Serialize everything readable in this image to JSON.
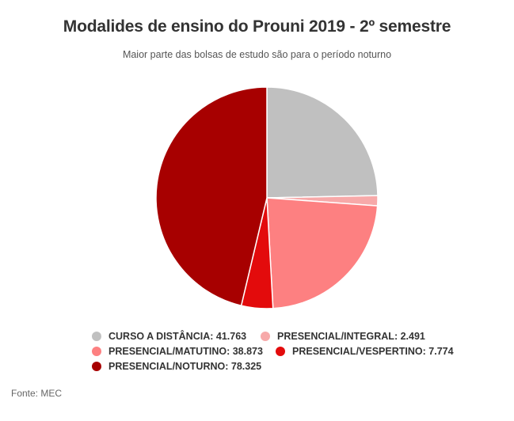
{
  "chart_data": {
    "type": "pie",
    "title": "Modalides de ensino do Prouni 2019 - 2º semestre",
    "subtitle": "Maior parte das bolsas de estudo são para o período noturno",
    "source": "Fonte: MEC",
    "legend_position": "bottom",
    "series": [
      {
        "name": "CURSO A DISTÂNCIA",
        "value": 41763,
        "value_label": "41.763",
        "color": "#c0c0c0"
      },
      {
        "name": "PRESENCIAL/INTEGRAL",
        "value": 2491,
        "value_label": "2.491",
        "color": "#f7a9a9"
      },
      {
        "name": "PRESENCIAL/MATUTINO",
        "value": 38873,
        "value_label": "38.873",
        "color": "#fd8081"
      },
      {
        "name": "PRESENCIAL/VESPERTINO",
        "value": 7774,
        "value_label": "7.774",
        "color": "#e30b0c"
      },
      {
        "name": "PRESENCIAL/NOTURNO",
        "value": 78325,
        "value_label": "78.325",
        "color": "#a70000"
      }
    ]
  }
}
